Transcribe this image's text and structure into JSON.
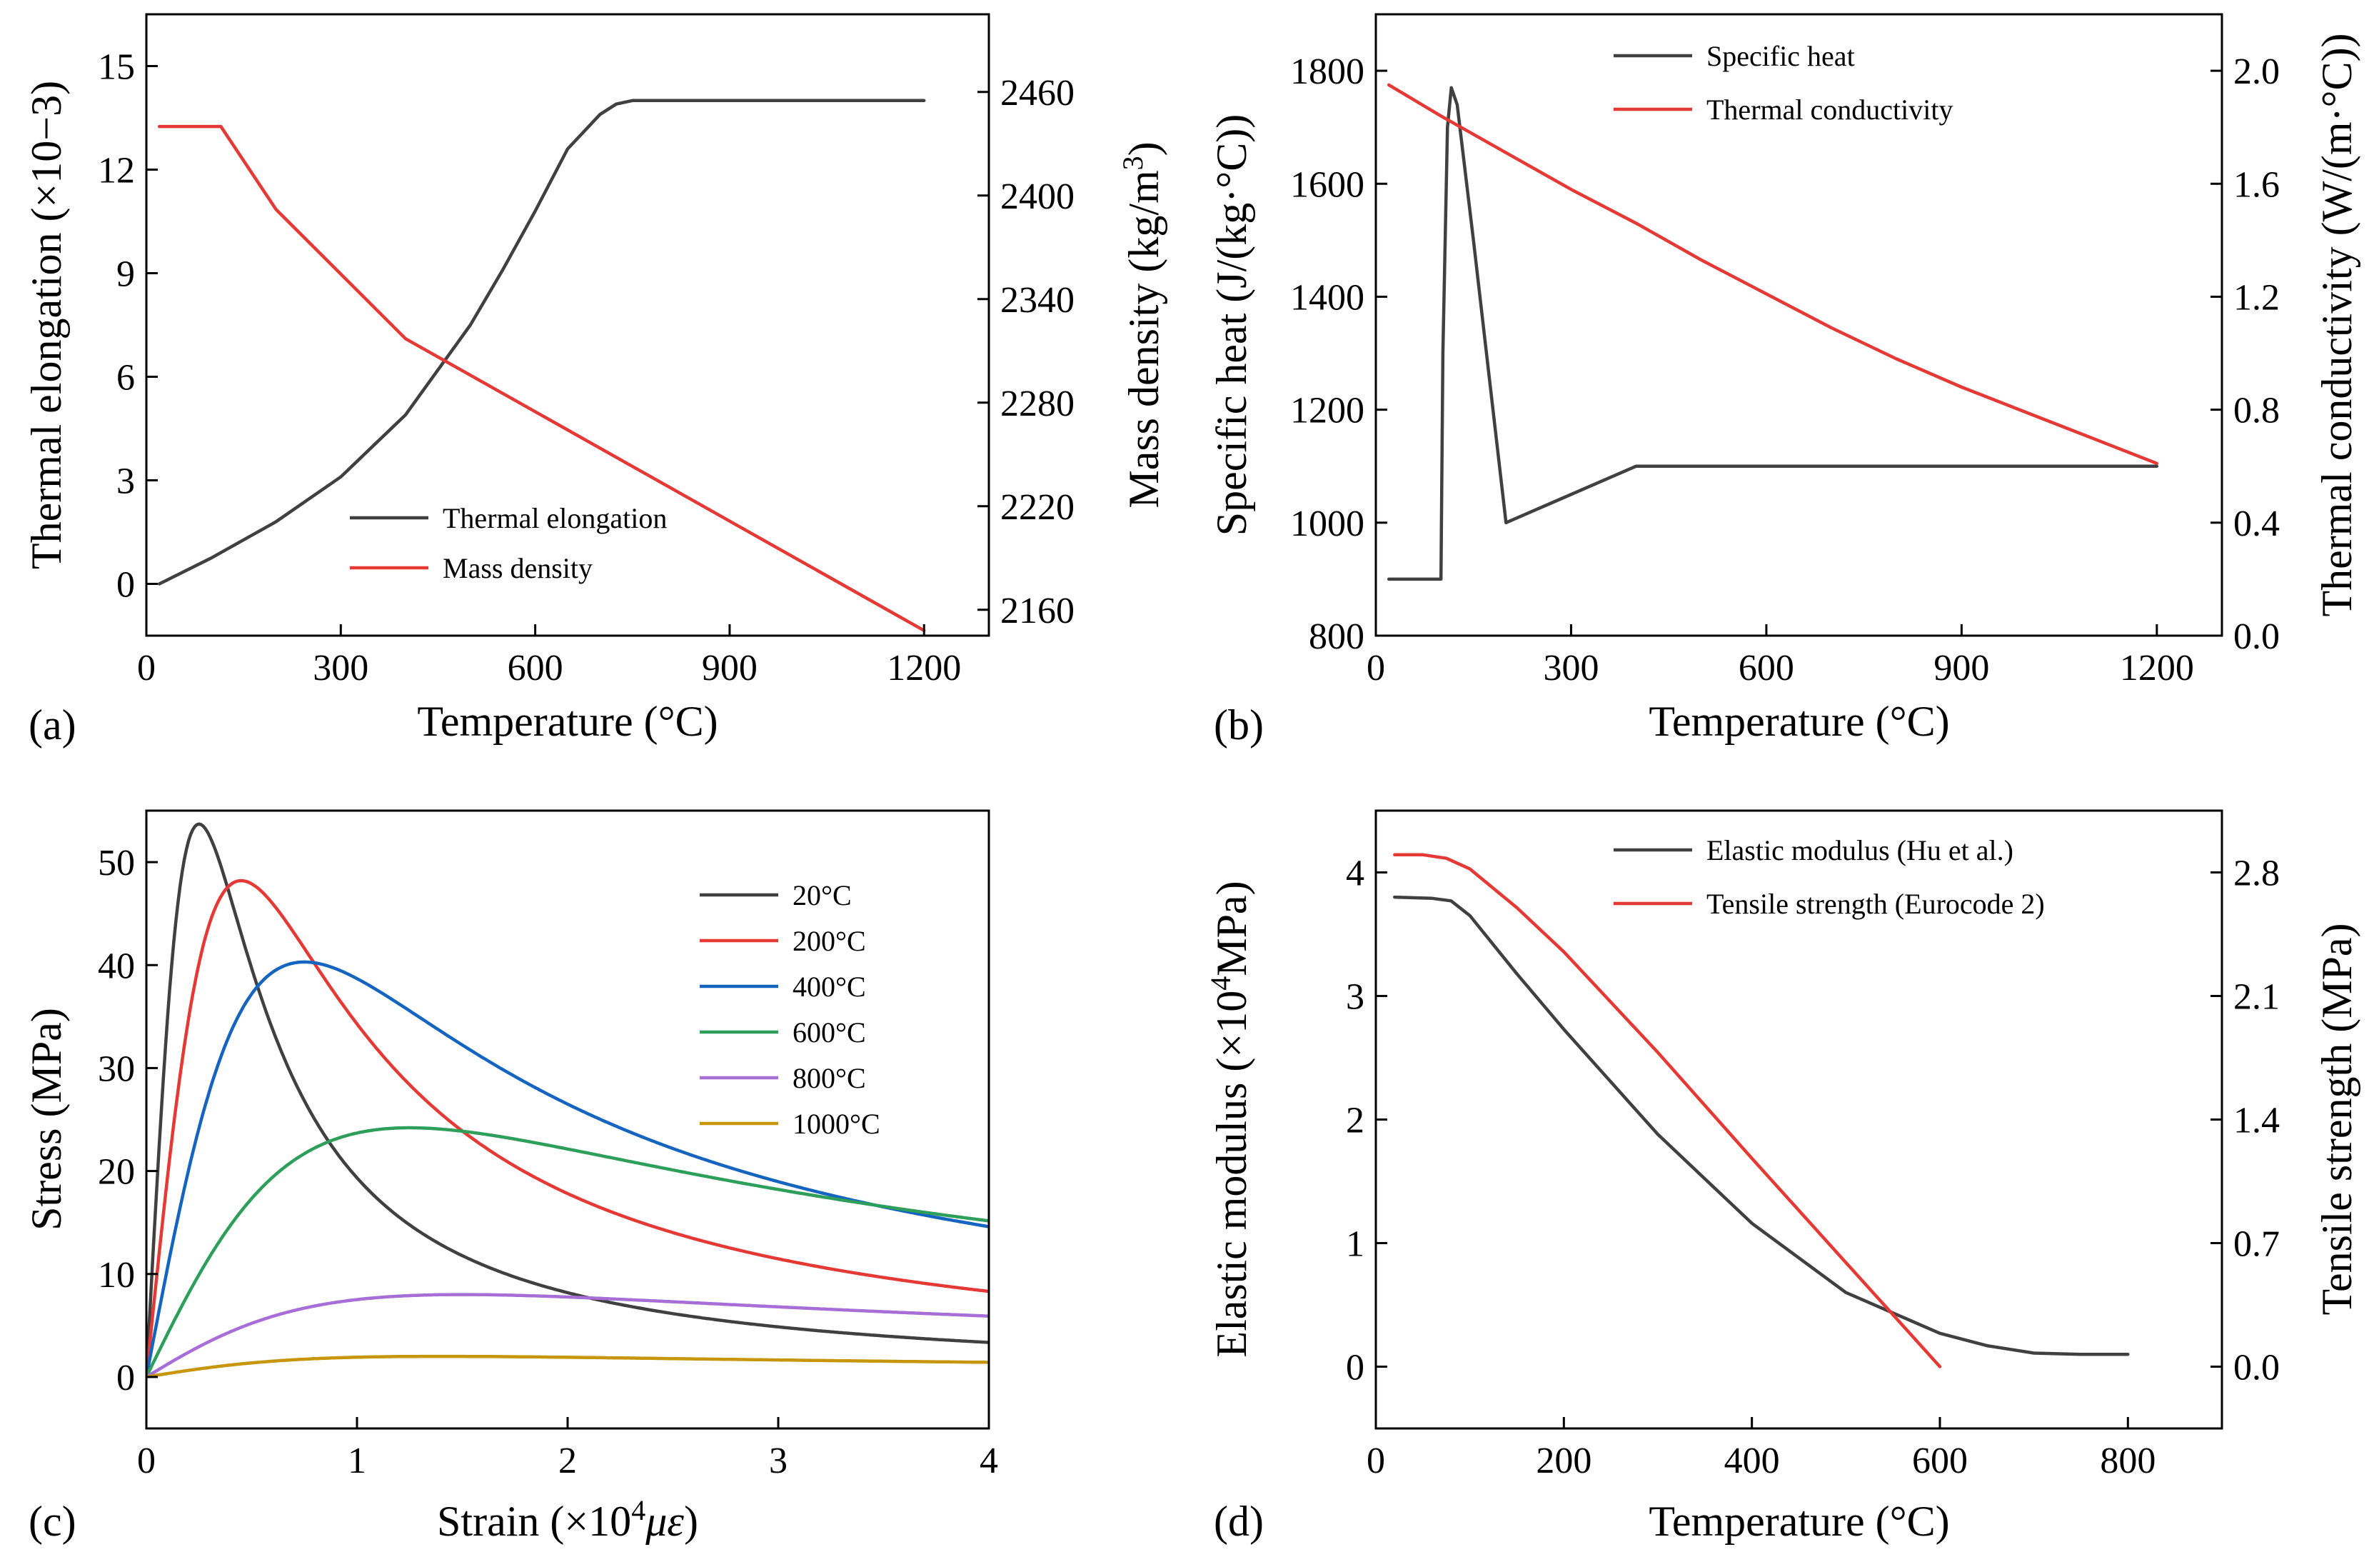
{
  "chart_data": [
    {
      "id": "a",
      "type": "line",
      "panel_label": "(a)",
      "xlabel": "Temperature (°C)",
      "ylabel": "Thermal elongation (×10−3)",
      "y2label": "Mass density (kg/m3)",
      "y2label_main": "Mass density (kg/m",
      "y2label_sup": "3",
      "y2label_end": ")",
      "xlim": [
        0,
        1300
      ],
      "ylim": [
        -1.5,
        16.5
      ],
      "y2lim": [
        2145,
        2505
      ],
      "xticks": [
        0,
        300,
        600,
        900,
        1200
      ],
      "yticks": [
        0,
        3,
        6,
        9,
        12,
        15
      ],
      "y2ticks": [
        2160,
        2220,
        2280,
        2340,
        2400,
        2460
      ],
      "legend_position": "bottom-center",
      "series": [
        {
          "name": "Thermal elongation",
          "color": "#404040",
          "axis": "left",
          "x": [
            20,
            100,
            200,
            300,
            400,
            500,
            550,
            600,
            650,
            700,
            725,
            750,
            775,
            800,
            900,
            1000,
            1100,
            1200
          ],
          "y": [
            0,
            0.75,
            1.8,
            3.1,
            4.9,
            7.5,
            9.1,
            10.8,
            12.6,
            13.6,
            13.9,
            14.0,
            14.0,
            14.0,
            14.0,
            14.0,
            14.0,
            14.0
          ]
        },
        {
          "name": "Mass density",
          "color": "#e53935",
          "axis": "right",
          "x": [
            20,
            115,
            200,
            400,
            1200
          ],
          "y": [
            2440,
            2440,
            2392,
            2317,
            2148
          ]
        }
      ]
    },
    {
      "id": "b",
      "type": "line",
      "panel_label": "(b)",
      "xlabel": "Temperature (°C)",
      "ylabel": "Specific heat (J/(kg·°C))",
      "y2label": "Thermal conductivity (W/(m·°C))",
      "xlim": [
        0,
        1300
      ],
      "ylim": [
        800,
        1900
      ],
      "y2lim": [
        0.0,
        2.2
      ],
      "xticks": [
        0,
        300,
        600,
        900,
        1200
      ],
      "yticks": [
        800,
        1000,
        1200,
        1400,
        1600,
        1800
      ],
      "y2ticks": [
        0.0,
        0.4,
        0.8,
        1.2,
        1.6,
        2.0
      ],
      "legend_position": "top-center",
      "series": [
        {
          "name": "Specific heat",
          "color": "#404040",
          "axis": "left",
          "x": [
            20,
            100,
            103,
            110,
            116,
            125,
            150,
            200,
            400,
            1200
          ],
          "y": [
            900,
            900,
            1300,
            1700,
            1770,
            1740,
            1500,
            1000,
            1100,
            1100
          ]
        },
        {
          "name": "Thermal conductivity",
          "color": "#e53935",
          "axis": "right",
          "x": [
            20,
            100,
            200,
            300,
            400,
            500,
            600,
            700,
            800,
            900,
            1000,
            1100,
            1200
          ],
          "y": [
            1.95,
            1.84,
            1.71,
            1.58,
            1.46,
            1.33,
            1.21,
            1.09,
            0.98,
            0.88,
            0.79,
            0.7,
            0.61
          ]
        }
      ]
    },
    {
      "id": "c",
      "type": "line",
      "panel_label": "(c)",
      "xlabel": "Strain (×104με)",
      "xlabel_main": "Strain (×10",
      "xlabel_sup": "4",
      "xlabel_unit": "με",
      "xlabel_end": ")",
      "ylabel": "Stress (MPa)",
      "xlim": [
        0,
        4
      ],
      "ylim": [
        -5,
        55
      ],
      "xticks": [
        0,
        1,
        2,
        3,
        4
      ],
      "yticks": [
        0,
        10,
        20,
        30,
        40,
        50
      ],
      "legend_position": "top-right",
      "series": [
        {
          "name": "20°C",
          "color": "#404040",
          "fmax": 53.7,
          "eps0": 0.25,
          "shape": 2.3
        },
        {
          "name": "200°C",
          "color": "#e53935",
          "fmax": 48.2,
          "eps0": 0.45,
          "shape": 2.15
        },
        {
          "name": "400°C",
          "color": "#1565c0",
          "fmax": 40.3,
          "eps0": 0.75,
          "shape": 2.0
        },
        {
          "name": "600°C",
          "color": "#2e9e5b",
          "fmax": 24.2,
          "eps0": 1.25,
          "shape": 1.85
        },
        {
          "name": "800°C",
          "color": "#a86ed8",
          "fmax": 8.0,
          "eps0": 1.5,
          "shape": 1.75
        },
        {
          "name": "1000°C",
          "color": "#c8960c",
          "fmax": 2.0,
          "eps0": 1.4,
          "shape": 1.75
        }
      ]
    },
    {
      "id": "d",
      "type": "line",
      "panel_label": "(d)",
      "xlabel": "Temperature (°C)",
      "ylabel": "Elastic modulus (×104MPa)",
      "ylabel_main": "Elastic modulus (×10",
      "ylabel_sup": "4",
      "ylabel_end": "MPa)",
      "y2label": "Tensile strength (MPa)",
      "xlim": [
        0,
        900
      ],
      "ylim": [
        -0.5,
        4.5
      ],
      "y2lim": [
        -0.35,
        3.15
      ],
      "xticks": [
        0,
        200,
        400,
        600,
        800
      ],
      "yticks": [
        0,
        1,
        2,
        3,
        4
      ],
      "y2ticks": [
        0.0,
        0.7,
        1.4,
        2.1,
        2.8
      ],
      "y2ticklabels": [
        "0.0",
        "0.7",
        "1.4",
        "2.1",
        "2.8"
      ],
      "legend_position": "top-center",
      "series": [
        {
          "name": "Elastic modulus (Hu et al.)",
          "color": "#404040",
          "axis": "left",
          "x": [
            20,
            60,
            80,
            100,
            150,
            200,
            300,
            400,
            500,
            600,
            650,
            700,
            750,
            800
          ],
          "y": [
            3.8,
            3.79,
            3.77,
            3.65,
            3.18,
            2.73,
            1.88,
            1.16,
            0.6,
            0.27,
            0.17,
            0.11,
            0.1,
            0.1
          ]
        },
        {
          "name": "Tensile strength (Eurocode 2)",
          "color": "#e53935",
          "axis": "right",
          "x": [
            20,
            50,
            75,
            100,
            150,
            200,
            300,
            400,
            500,
            600
          ],
          "y": [
            2.9,
            2.9,
            2.88,
            2.82,
            2.6,
            2.35,
            1.78,
            1.18,
            0.59,
            0.0
          ]
        }
      ]
    }
  ]
}
